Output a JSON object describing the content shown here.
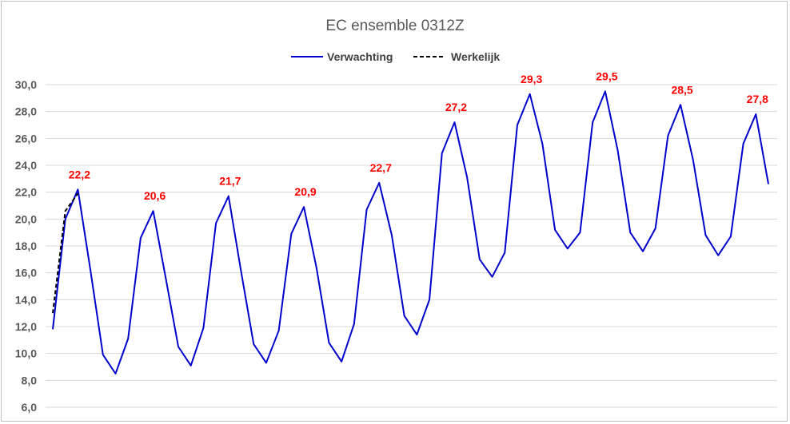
{
  "chart_data": {
    "type": "line",
    "title": "EC ensemble 0312Z",
    "xlabel": "",
    "ylabel": "",
    "ylim": [
      6,
      30
    ],
    "ytick_step": 2,
    "yticks": [
      "6,0",
      "8,0",
      "10,0",
      "12,0",
      "14,0",
      "16,0",
      "18,0",
      "20,0",
      "22,0",
      "24,0",
      "26,0",
      "28,0",
      "30,0"
    ],
    "grid": true,
    "legend_position": "top",
    "series": [
      {
        "name": "Verwachting",
        "color": "#0000cc",
        "style": "solid",
        "x": [
          0,
          1,
          2,
          3,
          4,
          5,
          6,
          7,
          8,
          9,
          10,
          11,
          12,
          13,
          14,
          15,
          16,
          17,
          18,
          19,
          20,
          21,
          22,
          23,
          24,
          25,
          26,
          27,
          28,
          29,
          30,
          31,
          32,
          33,
          34,
          35,
          36,
          37,
          38,
          39,
          40,
          41,
          42,
          43,
          44,
          45,
          46,
          47,
          48,
          49,
          50,
          51,
          52,
          53,
          54,
          55,
          56,
          57
        ],
        "values": [
          11.8,
          20.0,
          22.2,
          16.2,
          9.9,
          8.5,
          11.1,
          18.6,
          20.6,
          15.6,
          10.5,
          9.1,
          11.9,
          19.7,
          21.7,
          16.1,
          10.7,
          9.3,
          11.7,
          18.9,
          20.9,
          16.4,
          10.8,
          9.4,
          12.2,
          20.7,
          22.7,
          18.8,
          12.8,
          11.4,
          14.0,
          24.9,
          27.2,
          23.1,
          17.0,
          15.7,
          17.5,
          27.0,
          29.3,
          25.6,
          19.2,
          17.8,
          19.0,
          27.2,
          29.5,
          25.1,
          19.0,
          17.6,
          19.3,
          26.2,
          28.5,
          24.4,
          18.8,
          17.3,
          18.7,
          25.6,
          27.8,
          22.6
        ]
      },
      {
        "name": "Werkelijk",
        "color": "#000000",
        "style": "dashed",
        "x": [
          0,
          1,
          2
        ],
        "values": [
          13.0,
          20.6,
          21.9
        ]
      }
    ],
    "annotations": [
      {
        "x": 2,
        "y": 22.2,
        "label": "22,2"
      },
      {
        "x": 8,
        "y": 20.6,
        "label": "20,6"
      },
      {
        "x": 14,
        "y": 21.7,
        "label": "21,7"
      },
      {
        "x": 20,
        "y": 20.9,
        "label": "20,9"
      },
      {
        "x": 26,
        "y": 22.7,
        "label": "22,7"
      },
      {
        "x": 32,
        "y": 27.2,
        "label": "27,2"
      },
      {
        "x": 38,
        "y": 29.3,
        "label": "29,3"
      },
      {
        "x": 44,
        "y": 29.5,
        "label": "29,5"
      },
      {
        "x": 50,
        "y": 28.5,
        "label": "28,5"
      },
      {
        "x": 56,
        "y": 27.8,
        "label": "27,8"
      }
    ]
  }
}
